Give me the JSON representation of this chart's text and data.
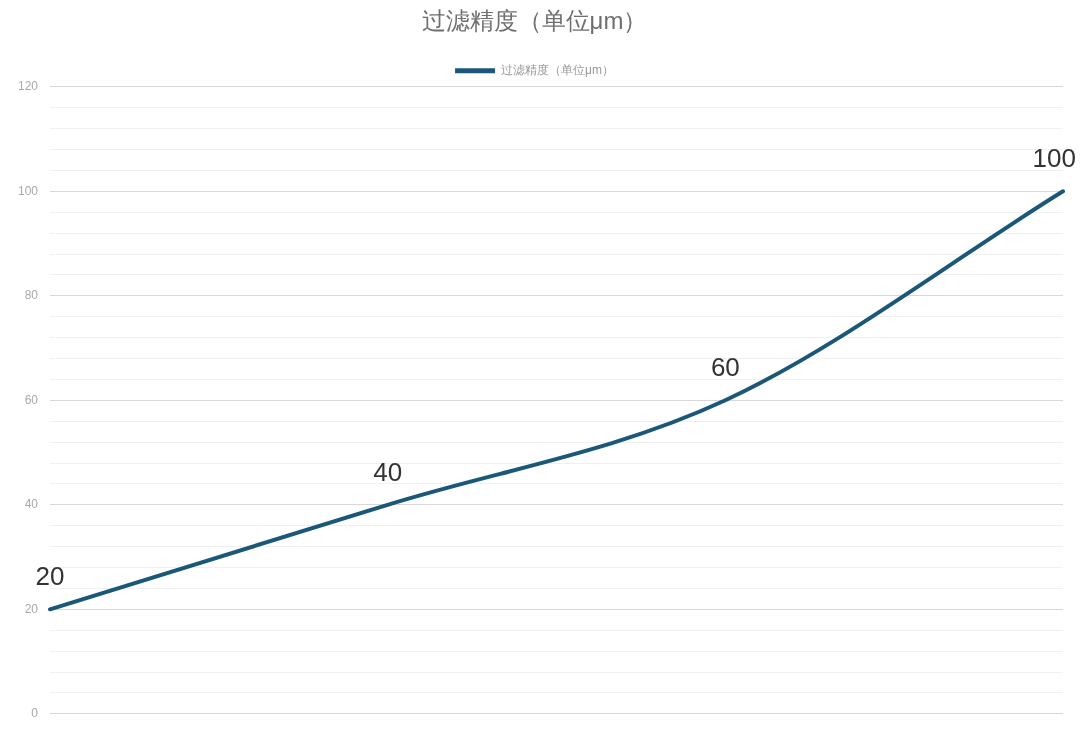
{
  "chart_data": {
    "type": "line",
    "title": "过滤精度（单位μm）",
    "categories": [
      null,
      null,
      null,
      null
    ],
    "series": [
      {
        "name": "过滤精度（单位μm）",
        "color": "#1b5878",
        "values": [
          20,
          40,
          60,
          100
        ]
      }
    ],
    "ylim": [
      0,
      120
    ],
    "yticks": [
      0,
      {
        "value": 4,
        "label": null
      },
      {
        "value": 8,
        "label": null
      },
      {
        "value": 12,
        "label": null
      },
      {
        "value": 16,
        "label": null
      },
      20,
      {
        "value": 24,
        "label": null
      },
      {
        "value": 28,
        "label": null
      },
      {
        "value": 32,
        "label": null
      },
      {
        "value": 36,
        "label": null
      },
      40,
      {
        "value": 44,
        "label": null
      },
      {
        "value": 48,
        "label": null
      },
      {
        "value": 52,
        "label": null
      },
      {
        "value": 56,
        "label": null
      },
      60,
      {
        "value": 64,
        "label": null
      },
      {
        "value": 68,
        "label": null
      },
      {
        "value": 72,
        "label": null
      },
      {
        "value": 76,
        "label": null
      },
      80,
      {
        "value": 84,
        "label": null
      },
      {
        "value": 88,
        "label": null
      },
      {
        "value": 92,
        "label": null
      },
      {
        "value": 96,
        "label": null
      },
      100,
      {
        "value": 104,
        "label": null
      },
      {
        "value": 108,
        "label": null
      },
      {
        "value": 112,
        "label": null
      },
      {
        "value": 116,
        "label": null
      },
      120
    ],
    "grid": "y",
    "legend": "top",
    "tick_labels": "y",
    "marker": "none",
    "line_style": "solid",
    "data_labels": true
  }
}
